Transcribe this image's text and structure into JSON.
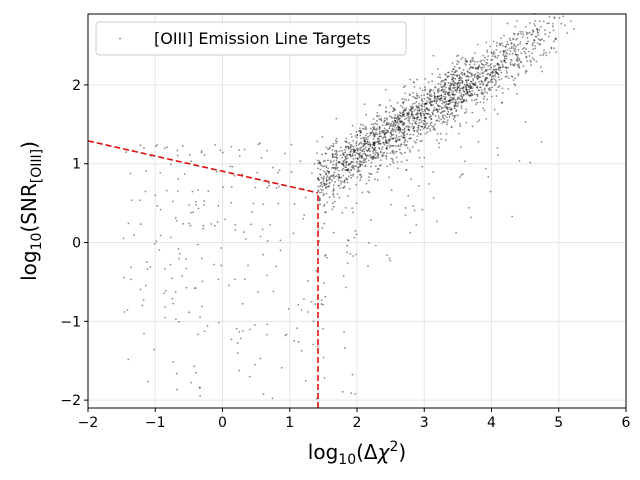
{
  "chart_data": {
    "type": "scatter",
    "title": "",
    "xlabel": {
      "base": "log",
      "sub": "10",
      "open": "(Δ",
      "chi": "χ",
      "sup": "2",
      "close": ")"
    },
    "ylabel": {
      "base": "log",
      "sub": "10",
      "open": "(SNR",
      "subscript": "[OIII]",
      "close": ")"
    },
    "xlim": [
      -2,
      6
    ],
    "ylim": [
      -2.1,
      2.9
    ],
    "xticks": [
      -2,
      -1,
      0,
      1,
      2,
      3,
      4,
      5,
      6
    ],
    "xtick_labels": [
      "−2",
      "−1",
      "0",
      "1",
      "2",
      "3",
      "4",
      "5",
      "6"
    ],
    "yticks": [
      -2,
      -1,
      0,
      1,
      2
    ],
    "ytick_labels": [
      "−2",
      "−1",
      "0",
      "1",
      "2"
    ],
    "grid": true,
    "legend": {
      "position": "top-left",
      "entries": [
        "[OIII] Emission Line Targets"
      ]
    },
    "series": [
      {
        "name": "[OIII] Emission Line Targets",
        "marker_color": "#000000",
        "n_points": 2300,
        "trend": {
          "slope": 0.55,
          "intercept": 0.0,
          "scatter": 0.18,
          "x_range": [
            1.4,
            5.3
          ]
        },
        "outliers": {
          "x_range": [
            -1.5,
            2.0
          ],
          "y_range": [
            -2.0,
            1.3
          ]
        }
      }
    ],
    "threshold_lines": {
      "color": "#e01010",
      "style": "dashed",
      "segments": [
        {
          "x": [
            -2,
            1.42
          ],
          "y": [
            1.29,
            0.63
          ]
        },
        {
          "x": [
            1.42,
            1.42
          ],
          "y": [
            -2.1,
            0.63
          ]
        }
      ]
    }
  }
}
